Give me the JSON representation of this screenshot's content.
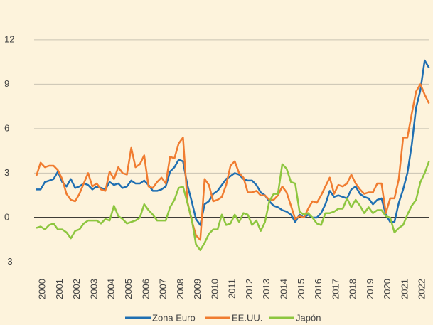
{
  "chart_data": {
    "type": "line",
    "x": [
      2000.125,
      2000.375,
      2000.625,
      2000.875,
      2001.125,
      2001.375,
      2001.625,
      2001.875,
      2002.125,
      2002.375,
      2002.625,
      2002.875,
      2003.125,
      2003.375,
      2003.625,
      2003.875,
      2004.125,
      2004.375,
      2004.625,
      2004.875,
      2005.125,
      2005.375,
      2005.625,
      2005.875,
      2006.125,
      2006.375,
      2006.625,
      2006.875,
      2007.125,
      2007.375,
      2007.625,
      2007.875,
      2008.125,
      2008.375,
      2008.625,
      2008.875,
      2009.125,
      2009.375,
      2009.625,
      2009.875,
      2010.125,
      2010.375,
      2010.625,
      2010.875,
      2011.125,
      2011.375,
      2011.625,
      2011.875,
      2012.125,
      2012.375,
      2012.625,
      2012.875,
      2013.125,
      2013.375,
      2013.625,
      2013.875,
      2014.125,
      2014.375,
      2014.625,
      2014.875,
      2015.125,
      2015.375,
      2015.625,
      2015.875,
      2016.125,
      2016.375,
      2016.625,
      2016.875,
      2017.125,
      2017.375,
      2017.625,
      2017.875,
      2018.125,
      2018.375,
      2018.625,
      2018.875,
      2019.125,
      2019.375,
      2019.625,
      2019.875,
      2020.125,
      2020.375,
      2020.625,
      2020.875,
      2021.125,
      2021.375,
      2021.625,
      2021.875,
      2022.125,
      2022.375,
      2022.625,
      2022.875
    ],
    "series": [
      {
        "name": "Zona Euro",
        "color": "#1f6fb2",
        "values": [
          1.9,
          1.9,
          2.4,
          2.5,
          2.6,
          3.1,
          2.4,
          2.1,
          2.6,
          2.0,
          2.1,
          2.3,
          2.2,
          1.9,
          2.1,
          2.0,
          1.9,
          2.4,
          2.2,
          2.3,
          2.0,
          2.1,
          2.5,
          2.3,
          2.3,
          2.5,
          2.2,
          1.8,
          1.8,
          1.9,
          2.1,
          3.1,
          3.4,
          3.9,
          3.8,
          2.2,
          1.1,
          -0.1,
          -0.5,
          0.9,
          1.1,
          1.6,
          1.8,
          2.2,
          2.6,
          2.8,
          3.0,
          2.9,
          2.6,
          2.5,
          2.5,
          2.2,
          1.7,
          1.5,
          1.1,
          0.8,
          0.7,
          0.5,
          0.4,
          0.2,
          -0.3,
          0.2,
          0.0,
          0.2,
          0.0,
          0.0,
          0.3,
          0.9,
          1.8,
          1.4,
          1.5,
          1.4,
          1.3,
          1.9,
          2.1,
          1.6,
          1.4,
          1.3,
          0.9,
          1.2,
          1.3,
          0.2,
          -0.3,
          -0.3,
          1.0,
          1.9,
          3.0,
          4.9,
          7.4,
          8.6,
          10.6,
          10.1
        ]
      },
      {
        "name": "EE.UU.",
        "color": "#f07c30",
        "values": [
          2.8,
          3.7,
          3.4,
          3.5,
          3.5,
          3.2,
          2.6,
          1.6,
          1.2,
          1.1,
          1.6,
          2.3,
          3.0,
          2.1,
          2.3,
          1.9,
          1.8,
          3.1,
          2.6,
          3.4,
          3.0,
          2.9,
          4.7,
          3.4,
          3.6,
          4.2,
          2.1,
          2.0,
          2.4,
          2.7,
          2.3,
          4.1,
          4.0,
          5.0,
          5.4,
          1.1,
          -0.2,
          -1.2,
          -1.5,
          2.6,
          2.2,
          1.1,
          1.2,
          1.4,
          2.2,
          3.5,
          3.8,
          3.0,
          2.7,
          1.7,
          1.7,
          1.8,
          1.5,
          1.5,
          1.2,
          1.2,
          1.5,
          2.1,
          1.7,
          0.8,
          -0.1,
          0.1,
          0.0,
          0.6,
          1.1,
          1.0,
          1.5,
          2.1,
          2.7,
          1.6,
          2.2,
          2.1,
          2.3,
          2.9,
          2.3,
          1.9,
          1.6,
          1.7,
          1.7,
          2.3,
          2.3,
          0.3,
          1.3,
          1.3,
          2.6,
          5.4,
          5.4,
          7.0,
          8.5,
          9.0,
          8.3,
          7.7
        ]
      },
      {
        "name": "Japón",
        "color": "#8dc63f",
        "values": [
          -0.7,
          -0.6,
          -0.8,
          -0.5,
          -0.4,
          -0.8,
          -0.8,
          -1.0,
          -1.4,
          -0.9,
          -0.8,
          -0.4,
          -0.2,
          -0.2,
          -0.2,
          -0.4,
          -0.1,
          -0.2,
          0.8,
          0.1,
          -0.1,
          -0.4,
          -0.3,
          -0.2,
          0.0,
          0.9,
          0.5,
          0.2,
          -0.2,
          -0.2,
          -0.2,
          0.7,
          1.2,
          2.0,
          2.1,
          1.0,
          -0.1,
          -1.8,
          -2.2,
          -1.7,
          -1.1,
          -0.8,
          -0.8,
          0.2,
          -0.5,
          -0.4,
          0.2,
          -0.3,
          0.3,
          0.2,
          -0.5,
          -0.2,
          -0.9,
          -0.3,
          1.1,
          1.6,
          1.6,
          3.6,
          3.3,
          2.4,
          2.3,
          0.4,
          0.2,
          0.3,
          0.0,
          -0.4,
          -0.5,
          0.3,
          0.3,
          0.4,
          0.6,
          0.6,
          1.3,
          0.7,
          1.2,
          0.8,
          0.3,
          0.7,
          0.3,
          0.5,
          0.5,
          0.1,
          0.0,
          -1.0,
          -0.7,
          -0.5,
          0.2,
          0.8,
          1.2,
          2.4,
          3.0,
          3.8
        ]
      }
    ],
    "xlim": [
      2000,
      2022.9
    ],
    "xticks": [
      {
        "value": 2000.5,
        "label": "2000"
      },
      {
        "value": 2001.5,
        "label": "2001"
      },
      {
        "value": 2002.5,
        "label": "2002"
      },
      {
        "value": 2003.5,
        "label": "2003"
      },
      {
        "value": 2004.5,
        "label": "2004"
      },
      {
        "value": 2005.5,
        "label": "2005"
      },
      {
        "value": 2006.5,
        "label": "2006"
      },
      {
        "value": 2007.5,
        "label": "2007"
      },
      {
        "value": 2008.5,
        "label": "2008"
      },
      {
        "value": 2009.5,
        "label": "2009"
      },
      {
        "value": 2010.5,
        "label": "2010"
      },
      {
        "value": 2011.5,
        "label": "2011"
      },
      {
        "value": 2012.5,
        "label": "2012"
      },
      {
        "value": 2013.5,
        "label": "2013"
      },
      {
        "value": 2014.5,
        "label": "2014"
      },
      {
        "value": 2015.5,
        "label": "2015"
      },
      {
        "value": 2016.5,
        "label": "2016"
      },
      {
        "value": 2017.5,
        "label": "2017"
      },
      {
        "value": 2018.5,
        "label": "2018"
      },
      {
        "value": 2019.5,
        "label": "2019"
      },
      {
        "value": 2020.5,
        "label": "2020"
      },
      {
        "value": 2021.5,
        "label": "2021"
      },
      {
        "value": 2022.5,
        "label": "2022"
      }
    ],
    "ylim": [
      -3.6,
      13
    ],
    "yticks": [
      -3,
      0,
      3,
      6,
      9,
      12
    ],
    "grid": true
  }
}
